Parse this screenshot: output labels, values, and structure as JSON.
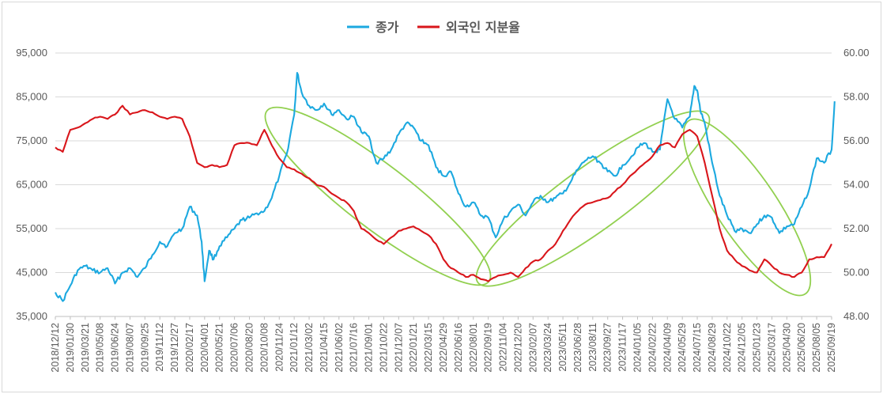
{
  "chart_data": {
    "type": "line",
    "title": "",
    "legend": {
      "placement": "top-center"
    },
    "grid": true,
    "y_left": {
      "min": 35000,
      "max": 95000,
      "step": 10000,
      "tick_labels": [
        "95,000",
        "85,000",
        "75,000",
        "65,000",
        "55,000",
        "45,000",
        "35,000"
      ]
    },
    "y_right": {
      "min": 48,
      "max": 60,
      "step": 2,
      "tick_labels": [
        "60.00",
        "58.00",
        "56.00",
        "54.00",
        "52.00",
        "50.00",
        "48.00"
      ]
    },
    "x_tick_labels": [
      "2018/12/12",
      "2019/01/30",
      "2019/03/21",
      "2019/05/08",
      "2019/06/24",
      "2019/08/07",
      "2019/09/25",
      "2019/11/12",
      "2019/12/27",
      "2020/02/17",
      "2020/04/01",
      "2020/05/21",
      "2020/07/06",
      "2020/08/20",
      "2020/10/08",
      "2020/11/24",
      "2021/01/12",
      "2021/03/02",
      "2021/04/15",
      "2021/06/02",
      "2021/07/16",
      "2021/09/01",
      "2021/10/22",
      "2021/12/07",
      "2022/01/21",
      "2022/03/15",
      "2022/04/29",
      "2022/06/16",
      "2022/08/01",
      "2022/09/19",
      "2022/11/04",
      "2022/12/20",
      "2023/02/07",
      "2023/03/24",
      "2023/05/11",
      "2023/06/28",
      "2023/08/11",
      "2023/09/27",
      "2023/11/17",
      "2024/01/05",
      "2024/02/22",
      "2024/04/09",
      "2024/05/29",
      "2024/07/15",
      "2024/08/29",
      "2024/10/22",
      "2024/12/05",
      "2025/01/23",
      "2025/03/17",
      "2025/04/30",
      "2025/06/20",
      "2025/08/05",
      "2025/09/19"
    ],
    "series": [
      {
        "name": "종가",
        "axis": "left",
        "color": "#1CA9E0",
        "points": [
          [
            0,
            40500
          ],
          [
            0.5,
            38500
          ],
          [
            1,
            42000
          ],
          [
            1.5,
            45500
          ],
          [
            2,
            46500
          ],
          [
            2.5,
            45500
          ],
          [
            3,
            45000
          ],
          [
            3.5,
            46000
          ],
          [
            4,
            42500
          ],
          [
            4.5,
            45000
          ],
          [
            5,
            46000
          ],
          [
            5.5,
            44000
          ],
          [
            6,
            46000
          ],
          [
            6.5,
            49000
          ],
          [
            7,
            52000
          ],
          [
            7.5,
            51000
          ],
          [
            8,
            54000
          ],
          [
            8.5,
            55000
          ],
          [
            9,
            60000
          ],
          [
            9.5,
            58000
          ],
          [
            9.8,
            52000
          ],
          [
            10,
            43000
          ],
          [
            10.3,
            50000
          ],
          [
            10.6,
            48000
          ],
          [
            11,
            51000
          ],
          [
            11.5,
            53000
          ],
          [
            12,
            55000
          ],
          [
            12.5,
            57000
          ],
          [
            13,
            57500
          ],
          [
            13.5,
            58500
          ],
          [
            14,
            59000
          ],
          [
            14.5,
            62000
          ],
          [
            15,
            67000
          ],
          [
            15.5,
            72000
          ],
          [
            16,
            81000
          ],
          [
            16.2,
            90500
          ],
          [
            16.5,
            86000
          ],
          [
            17,
            83000
          ],
          [
            17.5,
            82000
          ],
          [
            18,
            83500
          ],
          [
            18.5,
            81000
          ],
          [
            19,
            82000
          ],
          [
            19.5,
            80000
          ],
          [
            20,
            80500
          ],
          [
            20.5,
            77000
          ],
          [
            21,
            76000
          ],
          [
            21.5,
            70000
          ],
          [
            22,
            71000
          ],
          [
            22.5,
            73000
          ],
          [
            23,
            76500
          ],
          [
            23.5,
            79000
          ],
          [
            24,
            78000
          ],
          [
            24.5,
            75000
          ],
          [
            25,
            74000
          ],
          [
            25.5,
            69000
          ],
          [
            26,
            67000
          ],
          [
            26.5,
            68000
          ],
          [
            27,
            63000
          ],
          [
            27.5,
            60000
          ],
          [
            28,
            61000
          ],
          [
            28.5,
            58000
          ],
          [
            29,
            57500
          ],
          [
            29.5,
            53000
          ],
          [
            30,
            57000
          ],
          [
            30.5,
            59000
          ],
          [
            31,
            60500
          ],
          [
            31.5,
            58000
          ],
          [
            32,
            61000
          ],
          [
            32.5,
            62500
          ],
          [
            33,
            61000
          ],
          [
            33.5,
            62000
          ],
          [
            34,
            63000
          ],
          [
            34.5,
            65500
          ],
          [
            35,
            68500
          ],
          [
            35.5,
            70500
          ],
          [
            36,
            71500
          ],
          [
            36.5,
            70000
          ],
          [
            37,
            68000
          ],
          [
            37.5,
            67000
          ],
          [
            38,
            69500
          ],
          [
            38.5,
            71000
          ],
          [
            39,
            73500
          ],
          [
            39.5,
            74500
          ],
          [
            40,
            72500
          ],
          [
            40.5,
            73000
          ],
          [
            41,
            84500
          ],
          [
            41.5,
            80000
          ],
          [
            42,
            78000
          ],
          [
            42.5,
            80500
          ],
          [
            42.8,
            87500
          ],
          [
            43,
            86500
          ],
          [
            43.2,
            82000
          ],
          [
            43.5,
            79000
          ],
          [
            44,
            70000
          ],
          [
            44.5,
            62500
          ],
          [
            45,
            58000
          ],
          [
            45.5,
            54500
          ],
          [
            46,
            55000
          ],
          [
            46.5,
            54000
          ],
          [
            47,
            56000
          ],
          [
            47.5,
            58000
          ],
          [
            48,
            57500
          ],
          [
            48.5,
            54000
          ],
          [
            49,
            55500
          ],
          [
            49.5,
            56000
          ],
          [
            50,
            60000
          ],
          [
            50.5,
            64000
          ],
          [
            51,
            71000
          ],
          [
            51.5,
            70000
          ],
          [
            52,
            73000
          ],
          [
            52.2,
            84000
          ]
        ]
      },
      {
        "name": "외국인 지분율",
        "axis": "right",
        "color": "#D9161B",
        "points": [
          [
            0,
            55.7
          ],
          [
            0.5,
            55.5
          ],
          [
            1,
            56.5
          ],
          [
            1.5,
            56.6
          ],
          [
            2,
            56.8
          ],
          [
            2.5,
            57.0
          ],
          [
            3,
            57.1
          ],
          [
            3.5,
            57.0
          ],
          [
            4,
            57.2
          ],
          [
            4.5,
            57.6
          ],
          [
            5,
            57.2
          ],
          [
            5.5,
            57.3
          ],
          [
            6,
            57.4
          ],
          [
            6.5,
            57.3
          ],
          [
            7,
            57.1
          ],
          [
            7.5,
            57.0
          ],
          [
            8,
            57.1
          ],
          [
            8.5,
            57.0
          ],
          [
            9,
            56.2
          ],
          [
            9.5,
            55.0
          ],
          [
            10,
            54.8
          ],
          [
            10.5,
            54.9
          ],
          [
            11,
            54.8
          ],
          [
            11.5,
            54.9
          ],
          [
            12,
            55.8
          ],
          [
            12.5,
            55.9
          ],
          [
            13,
            55.9
          ],
          [
            13.5,
            55.8
          ],
          [
            14,
            56.5
          ],
          [
            14.5,
            55.8
          ],
          [
            15,
            55.2
          ],
          [
            15.5,
            54.8
          ],
          [
            16,
            54.7
          ],
          [
            16.5,
            54.5
          ],
          [
            17,
            54.3
          ],
          [
            17.5,
            54.0
          ],
          [
            18,
            53.9
          ],
          [
            18.5,
            53.6
          ],
          [
            19,
            53.4
          ],
          [
            19.5,
            53.2
          ],
          [
            20,
            52.8
          ],
          [
            20.5,
            52.0
          ],
          [
            21,
            51.8
          ],
          [
            21.5,
            51.5
          ],
          [
            22,
            51.3
          ],
          [
            22.5,
            51.6
          ],
          [
            23,
            51.9
          ],
          [
            23.5,
            52.0
          ],
          [
            24,
            52.1
          ],
          [
            24.5,
            51.9
          ],
          [
            25,
            51.7
          ],
          [
            25.5,
            51.3
          ],
          [
            26,
            50.6
          ],
          [
            26.5,
            50.2
          ],
          [
            27,
            50.0
          ],
          [
            27.5,
            49.8
          ],
          [
            28,
            49.9
          ],
          [
            28.5,
            49.7
          ],
          [
            29,
            49.6
          ],
          [
            29.5,
            49.8
          ],
          [
            30,
            49.9
          ],
          [
            30.5,
            50.0
          ],
          [
            31,
            49.8
          ],
          [
            31.5,
            50.2
          ],
          [
            32,
            50.5
          ],
          [
            32.5,
            50.6
          ],
          [
            33,
            51.0
          ],
          [
            33.5,
            51.3
          ],
          [
            34,
            51.9
          ],
          [
            34.5,
            52.4
          ],
          [
            35,
            52.8
          ],
          [
            35.5,
            53.1
          ],
          [
            36,
            53.2
          ],
          [
            36.5,
            53.3
          ],
          [
            37,
            53.4
          ],
          [
            37.5,
            53.7
          ],
          [
            38,
            54.0
          ],
          [
            38.5,
            54.4
          ],
          [
            39,
            54.7
          ],
          [
            39.5,
            55.0
          ],
          [
            40,
            55.3
          ],
          [
            40.5,
            55.8
          ],
          [
            41,
            55.9
          ],
          [
            41.5,
            55.7
          ],
          [
            42,
            56.3
          ],
          [
            42.5,
            56.5
          ],
          [
            43,
            56.2
          ],
          [
            43.5,
            55.0
          ],
          [
            44,
            53.5
          ],
          [
            44.5,
            52.0
          ],
          [
            45,
            51.0
          ],
          [
            45.5,
            50.6
          ],
          [
            46,
            50.3
          ],
          [
            46.5,
            50.1
          ],
          [
            47,
            50.0
          ],
          [
            47.5,
            50.6
          ],
          [
            48,
            50.3
          ],
          [
            48.5,
            50.0
          ],
          [
            49,
            49.9
          ],
          [
            49.5,
            49.8
          ],
          [
            50,
            50.0
          ],
          [
            50.5,
            50.6
          ],
          [
            51,
            50.7
          ],
          [
            51.5,
            50.7
          ],
          [
            52,
            51.3
          ]
        ]
      }
    ],
    "annotations": [
      {
        "type": "ellipse",
        "color": "#92D050"
      },
      {
        "type": "ellipse",
        "color": "#92D050"
      },
      {
        "type": "ellipse",
        "color": "#92D050"
      }
    ]
  }
}
